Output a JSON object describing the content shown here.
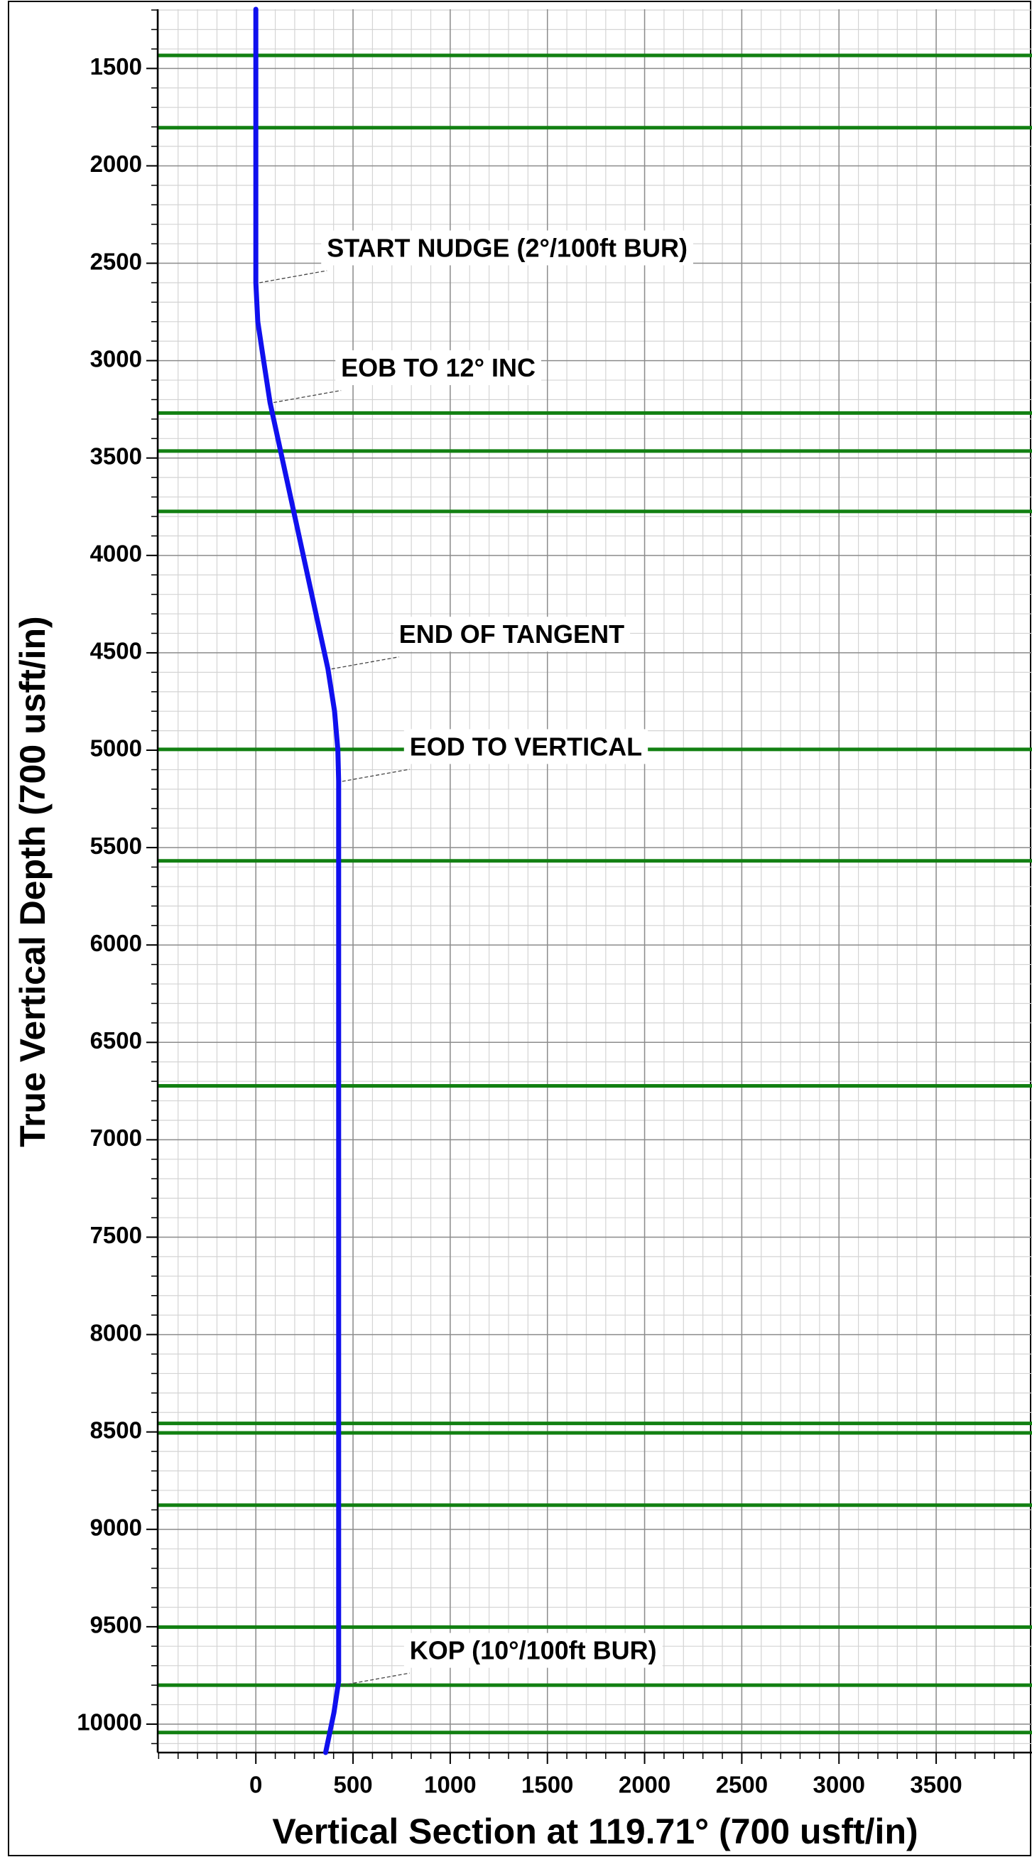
{
  "chart_data": {
    "type": "line",
    "x_label": "Vertical Section at 119.71° (700 usft/in)",
    "y_label": "True Vertical Depth (700 usft/in)",
    "xlim": [
      -505,
      3993
    ],
    "ylim": [
      1196,
      10146
    ],
    "y_inverted": true,
    "xticks": [
      0,
      500,
      1000,
      1500,
      2000,
      2500,
      3000,
      3500
    ],
    "yticks": [
      1500,
      2000,
      2500,
      3000,
      3500,
      4000,
      4500,
      5000,
      5500,
      6000,
      6500,
      7000,
      7500,
      8000,
      8500,
      9000,
      9500,
      10000
    ],
    "grid": true,
    "formation_tops": {
      "color": "#128012",
      "values": [
        1433,
        1804,
        3269,
        3464,
        3774,
        4996,
        5568,
        6723,
        8456,
        8505,
        8876,
        9502,
        9800,
        10043
      ]
    },
    "series": [
      {
        "color": "#1010ee",
        "x": [
          0,
          0,
          10,
          40,
          73,
          371,
          405,
          422,
          426,
          426,
          402,
          359
        ],
        "values": [
          1196,
          2600,
          2800,
          3000,
          3215,
          4583,
          4800,
          5000,
          5160,
          9780,
          9940,
          10146
        ]
      }
    ],
    "annotations": [
      {
        "text": "START NUDGE (2°/100ft BUR)",
        "x": 0,
        "y": 2600
      },
      {
        "text": "EOB TO 12° INC",
        "x": 73,
        "y": 3215
      },
      {
        "text": "END OF TANGENT",
        "x": 371,
        "y": 4583
      },
      {
        "text": "EOD TO VERTICAL",
        "x": 426,
        "y": 5160
      },
      {
        "text": "KOP (10°/100ft BUR)",
        "x": 426,
        "y": 9800
      }
    ]
  }
}
